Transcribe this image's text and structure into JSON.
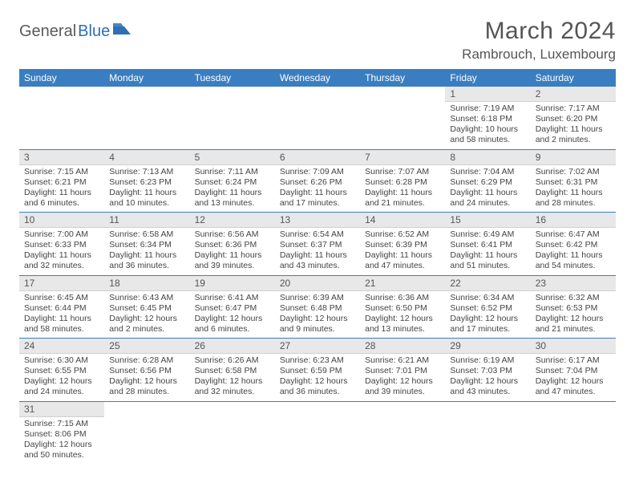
{
  "logo": {
    "text1": "General",
    "text2": "Blue",
    "flag_color": "#2e6fb5"
  },
  "title": "March 2024",
  "location": "Rambrouch, Luxembourg",
  "colors": {
    "header_bg": "#3a7ec1",
    "header_text": "#ffffff",
    "daybar_bg": "#e8e8e8",
    "border": "#3a7ec1",
    "text": "#444444"
  },
  "weekdays": [
    "Sunday",
    "Monday",
    "Tuesday",
    "Wednesday",
    "Thursday",
    "Friday",
    "Saturday"
  ],
  "weeks": [
    [
      null,
      null,
      null,
      null,
      null,
      {
        "n": "1",
        "sr": "Sunrise: 7:19 AM",
        "ss": "Sunset: 6:18 PM",
        "dl": "Daylight: 10 hours and 58 minutes."
      },
      {
        "n": "2",
        "sr": "Sunrise: 7:17 AM",
        "ss": "Sunset: 6:20 PM",
        "dl": "Daylight: 11 hours and 2 minutes."
      }
    ],
    [
      {
        "n": "3",
        "sr": "Sunrise: 7:15 AM",
        "ss": "Sunset: 6:21 PM",
        "dl": "Daylight: 11 hours and 6 minutes."
      },
      {
        "n": "4",
        "sr": "Sunrise: 7:13 AM",
        "ss": "Sunset: 6:23 PM",
        "dl": "Daylight: 11 hours and 10 minutes."
      },
      {
        "n": "5",
        "sr": "Sunrise: 7:11 AM",
        "ss": "Sunset: 6:24 PM",
        "dl": "Daylight: 11 hours and 13 minutes."
      },
      {
        "n": "6",
        "sr": "Sunrise: 7:09 AM",
        "ss": "Sunset: 6:26 PM",
        "dl": "Daylight: 11 hours and 17 minutes."
      },
      {
        "n": "7",
        "sr": "Sunrise: 7:07 AM",
        "ss": "Sunset: 6:28 PM",
        "dl": "Daylight: 11 hours and 21 minutes."
      },
      {
        "n": "8",
        "sr": "Sunrise: 7:04 AM",
        "ss": "Sunset: 6:29 PM",
        "dl": "Daylight: 11 hours and 24 minutes."
      },
      {
        "n": "9",
        "sr": "Sunrise: 7:02 AM",
        "ss": "Sunset: 6:31 PM",
        "dl": "Daylight: 11 hours and 28 minutes."
      }
    ],
    [
      {
        "n": "10",
        "sr": "Sunrise: 7:00 AM",
        "ss": "Sunset: 6:33 PM",
        "dl": "Daylight: 11 hours and 32 minutes."
      },
      {
        "n": "11",
        "sr": "Sunrise: 6:58 AM",
        "ss": "Sunset: 6:34 PM",
        "dl": "Daylight: 11 hours and 36 minutes."
      },
      {
        "n": "12",
        "sr": "Sunrise: 6:56 AM",
        "ss": "Sunset: 6:36 PM",
        "dl": "Daylight: 11 hours and 39 minutes."
      },
      {
        "n": "13",
        "sr": "Sunrise: 6:54 AM",
        "ss": "Sunset: 6:37 PM",
        "dl": "Daylight: 11 hours and 43 minutes."
      },
      {
        "n": "14",
        "sr": "Sunrise: 6:52 AM",
        "ss": "Sunset: 6:39 PM",
        "dl": "Daylight: 11 hours and 47 minutes."
      },
      {
        "n": "15",
        "sr": "Sunrise: 6:49 AM",
        "ss": "Sunset: 6:41 PM",
        "dl": "Daylight: 11 hours and 51 minutes."
      },
      {
        "n": "16",
        "sr": "Sunrise: 6:47 AM",
        "ss": "Sunset: 6:42 PM",
        "dl": "Daylight: 11 hours and 54 minutes."
      }
    ],
    [
      {
        "n": "17",
        "sr": "Sunrise: 6:45 AM",
        "ss": "Sunset: 6:44 PM",
        "dl": "Daylight: 11 hours and 58 minutes."
      },
      {
        "n": "18",
        "sr": "Sunrise: 6:43 AM",
        "ss": "Sunset: 6:45 PM",
        "dl": "Daylight: 12 hours and 2 minutes."
      },
      {
        "n": "19",
        "sr": "Sunrise: 6:41 AM",
        "ss": "Sunset: 6:47 PM",
        "dl": "Daylight: 12 hours and 6 minutes."
      },
      {
        "n": "20",
        "sr": "Sunrise: 6:39 AM",
        "ss": "Sunset: 6:48 PM",
        "dl": "Daylight: 12 hours and 9 minutes."
      },
      {
        "n": "21",
        "sr": "Sunrise: 6:36 AM",
        "ss": "Sunset: 6:50 PM",
        "dl": "Daylight: 12 hours and 13 minutes."
      },
      {
        "n": "22",
        "sr": "Sunrise: 6:34 AM",
        "ss": "Sunset: 6:52 PM",
        "dl": "Daylight: 12 hours and 17 minutes."
      },
      {
        "n": "23",
        "sr": "Sunrise: 6:32 AM",
        "ss": "Sunset: 6:53 PM",
        "dl": "Daylight: 12 hours and 21 minutes."
      }
    ],
    [
      {
        "n": "24",
        "sr": "Sunrise: 6:30 AM",
        "ss": "Sunset: 6:55 PM",
        "dl": "Daylight: 12 hours and 24 minutes."
      },
      {
        "n": "25",
        "sr": "Sunrise: 6:28 AM",
        "ss": "Sunset: 6:56 PM",
        "dl": "Daylight: 12 hours and 28 minutes."
      },
      {
        "n": "26",
        "sr": "Sunrise: 6:26 AM",
        "ss": "Sunset: 6:58 PM",
        "dl": "Daylight: 12 hours and 32 minutes."
      },
      {
        "n": "27",
        "sr": "Sunrise: 6:23 AM",
        "ss": "Sunset: 6:59 PM",
        "dl": "Daylight: 12 hours and 36 minutes."
      },
      {
        "n": "28",
        "sr": "Sunrise: 6:21 AM",
        "ss": "Sunset: 7:01 PM",
        "dl": "Daylight: 12 hours and 39 minutes."
      },
      {
        "n": "29",
        "sr": "Sunrise: 6:19 AM",
        "ss": "Sunset: 7:03 PM",
        "dl": "Daylight: 12 hours and 43 minutes."
      },
      {
        "n": "30",
        "sr": "Sunrise: 6:17 AM",
        "ss": "Sunset: 7:04 PM",
        "dl": "Daylight: 12 hours and 47 minutes."
      }
    ],
    [
      {
        "n": "31",
        "sr": "Sunrise: 7:15 AM",
        "ss": "Sunset: 8:06 PM",
        "dl": "Daylight: 12 hours and 50 minutes."
      },
      null,
      null,
      null,
      null,
      null,
      null
    ]
  ]
}
